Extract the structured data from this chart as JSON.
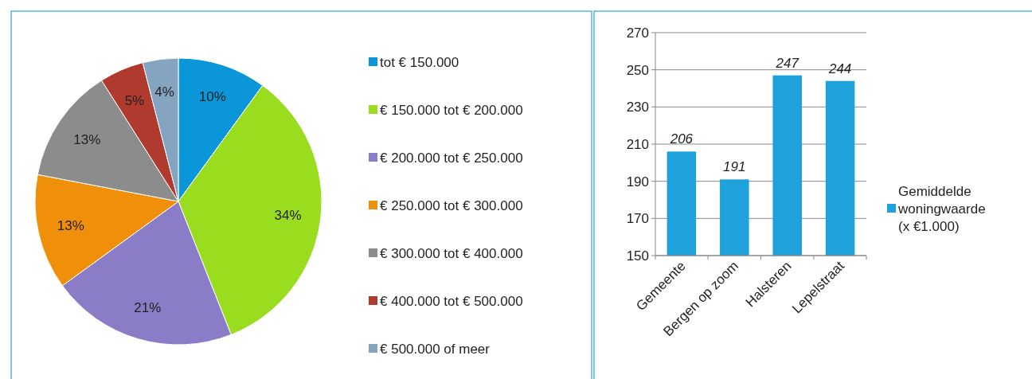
{
  "chart_data": [
    {
      "type": "pie",
      "categories": [
        "tot € 150.000",
        "€ 150.000 tot € 200.000",
        "€ 200.000 tot € 250.000",
        "€ 250.000 tot € 300.000",
        "€ 300.000 tot € 400.000",
        "€ 400.000 tot € 500.000",
        "€ 500.000 of meer"
      ],
      "values": [
        10,
        34,
        21,
        13,
        13,
        5,
        4
      ],
      "colors": [
        "#0a96d8",
        "#9adc1e",
        "#8b7cc8",
        "#f0900a",
        "#8c8c8c",
        "#b03a2e",
        "#85a4c0"
      ],
      "value_labels": [
        "10%",
        "34%",
        "21%",
        "13%",
        "13%",
        "5%",
        "4%"
      ],
      "legend": "right"
    },
    {
      "type": "bar",
      "categories": [
        "Gemeente",
        "Bergen op zoom",
        "Halsteren",
        "Lepelstraat"
      ],
      "series": [
        {
          "name": "Gemiddelde woningwaarde (x €1.000)",
          "color": "#1fa2dc",
          "values": [
            206,
            191,
            247,
            244
          ]
        }
      ],
      "ylim": [
        150,
        270
      ],
      "yticks": [
        150,
        170,
        190,
        210,
        230,
        250,
        270
      ],
      "grid": "y",
      "data_labels": true,
      "legend": "right"
    }
  ]
}
